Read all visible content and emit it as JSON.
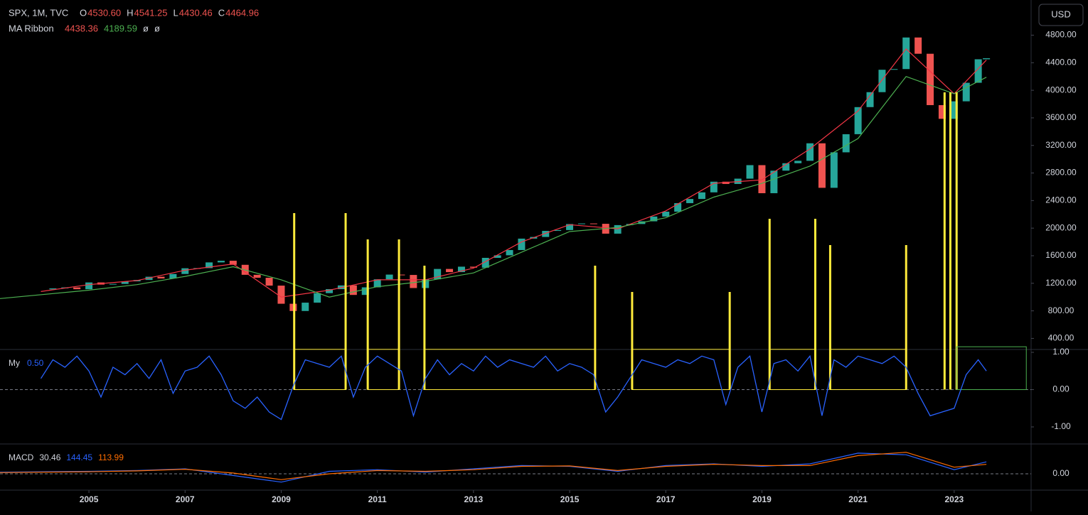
{
  "header": {
    "symbol": "SPX, 1M, TVC",
    "ohlc": [
      {
        "label": "O",
        "value": "4530.60"
      },
      {
        "label": "H",
        "value": "4541.25"
      },
      {
        "label": "L",
        "value": "4430.46"
      },
      {
        "label": "C",
        "value": "4464.96"
      }
    ],
    "ma_label": "MA Ribbon",
    "ma_values": [
      "4438.36",
      "4189.59",
      "ø",
      "ø"
    ],
    "currency": "USD"
  },
  "chart_data": [
    {
      "type": "candle",
      "x": [
        2004,
        2004.25,
        2004.5,
        2004.75,
        2005,
        2005.25,
        2005.5,
        2005.75,
        2006,
        2006.25,
        2006.5,
        2006.75,
        2007,
        2007.25,
        2007.5,
        2007.75,
        2008,
        2008.25,
        2008.5,
        2008.75,
        2009,
        2009.25,
        2009.5,
        2009.75,
        2010,
        2010.25,
        2010.5,
        2010.75,
        2011,
        2011.25,
        2011.5,
        2011.75,
        2012,
        2012.25,
        2012.5,
        2012.75,
        2013,
        2013.25,
        2013.5,
        2013.75,
        2014,
        2014.25,
        2014.5,
        2014.75,
        2015,
        2015.25,
        2015.5,
        2015.75,
        2016,
        2016.25,
        2016.5,
        2016.75,
        2017,
        2017.25,
        2017.5,
        2017.75,
        2018,
        2018.25,
        2018.5,
        2018.75,
        2019,
        2019.25,
        2019.5,
        2019.75,
        2020,
        2020.25,
        2020.5,
        2020.75,
        2021,
        2021.25,
        2021.5,
        2021.75,
        2022,
        2022.25,
        2022.5,
        2022.75,
        2023,
        2023.25,
        2023.5,
        2023.67
      ],
      "values": [
        1112,
        1126,
        1140,
        1114,
        1212,
        1181,
        1191,
        1228,
        1248,
        1295,
        1270,
        1335,
        1418,
        1420,
        1503,
        1527,
        1468,
        1323,
        1280,
        1166,
        903,
        798,
        919,
        1057,
        1115,
        1169,
        1031,
        1141,
        1258,
        1326,
        1321,
        1131,
        1258,
        1408,
        1362,
        1441,
        1426,
        1569,
        1606,
        1682,
        1848,
        1872,
        1960,
        1972,
        2059,
        2068,
        2063,
        1920,
        2044,
        2060,
        2099,
        2168,
        2239,
        2363,
        2423,
        2519,
        2674,
        2641,
        2718,
        2914,
        2507,
        2834,
        2942,
        2977,
        3231,
        2585,
        3100,
        3363,
        3756,
        3973,
        4298,
        4308,
        4766,
        4530,
        3785,
        3586,
        3840,
        4109,
        4450,
        4465
      ],
      "up_color": "#26a69a",
      "down_color": "#ef5350",
      "lines": [
        {
          "color": "#f23645",
          "x": [
            2004,
            2005,
            2006,
            2007,
            2008,
            2009,
            2010,
            2011,
            2012,
            2013,
            2014,
            2015,
            2016,
            2017,
            2018,
            2019,
            2020,
            2021,
            2022,
            2023,
            2023.67
          ],
          "values": [
            1080,
            1180,
            1240,
            1390,
            1480,
            1000,
            1100,
            1250,
            1250,
            1420,
            1800,
            2050,
            1990,
            2250,
            2650,
            2700,
            3150,
            3700,
            4600,
            3950,
            4438
          ]
        },
        {
          "color": "#4caf50",
          "x": [
            2003.15,
            2005,
            2006,
            2007,
            2008,
            2009,
            2010,
            2011,
            2012,
            2013,
            2014,
            2015,
            2016,
            2017,
            2018,
            2019,
            2020,
            2021,
            2022,
            2023,
            2023.67
          ],
          "values": [
            978,
            1100,
            1180,
            1300,
            1440,
            1250,
            1000,
            1150,
            1230,
            1350,
            1650,
            1950,
            2010,
            2150,
            2450,
            2650,
            2900,
            3300,
            4200,
            3950,
            4190
          ]
        }
      ],
      "xlim": [
        2003.15,
        2024.6
      ],
      "ylim": [
        260,
        5310
      ],
      "yticks": [
        {
          "value": 400,
          "label": "400.00"
        },
        {
          "value": 800,
          "label": "800.00"
        },
        {
          "value": 1200,
          "label": "1200.00"
        },
        {
          "value": 1600,
          "label": "1600.00"
        },
        {
          "value": 2000,
          "label": "2000.00"
        },
        {
          "value": 2400,
          "label": "2400.00"
        },
        {
          "value": 2800,
          "label": "2800.00"
        },
        {
          "value": 3200,
          "label": "3200.00"
        },
        {
          "value": 3600,
          "label": "3600.00"
        },
        {
          "value": 4000,
          "label": "4000.00"
        },
        {
          "value": 4400,
          "label": "4400.00"
        },
        {
          "value": 4800,
          "label": "4800.00"
        }
      ],
      "xticks": [
        2005,
        2007,
        2009,
        2011,
        2013,
        2015,
        2017,
        2019,
        2021,
        2023
      ]
    },
    {
      "type": "oscillator",
      "name": "My",
      "value_label": "0.50",
      "color": "#2962ff",
      "values": [
        0.3,
        0.8,
        0.6,
        0.9,
        0.5,
        -0.2,
        0.6,
        0.4,
        0.7,
        0.3,
        0.8,
        -0.1,
        0.5,
        0.6,
        0.9,
        0.4,
        -0.3,
        -0.5,
        -0.2,
        -0.6,
        -0.8,
        0.1,
        0.8,
        0.7,
        0.6,
        0.9,
        -0.2,
        0.6,
        0.9,
        0.7,
        0.5,
        -0.7,
        0.3,
        0.8,
        0.4,
        0.7,
        0.5,
        0.9,
        0.6,
        0.8,
        0.7,
        0.6,
        0.9,
        0.5,
        0.7,
        0.6,
        0.4,
        -0.6,
        -0.2,
        0.3,
        0.8,
        0.7,
        0.6,
        0.8,
        0.7,
        0.9,
        0.8,
        -0.4,
        0.6,
        0.9,
        -0.6,
        0.7,
        0.8,
        0.5,
        0.9,
        -0.7,
        0.8,
        0.6,
        0.9,
        0.8,
        0.7,
        0.9,
        0.6,
        -0.1,
        -0.7,
        -0.6,
        -0.5,
        0.4,
        0.8,
        0.5
      ],
      "ylim": [
        -1.4,
        1.0
      ],
      "yticks": [
        {
          "value": 1,
          "label": "1.00"
        },
        {
          "value": 0,
          "label": "0.00"
        },
        {
          "value": -1,
          "label": "-1.00"
        }
      ],
      "boxes": [
        [
          2009.27,
          2010.34
        ],
        [
          2010.8,
          2011.45
        ],
        [
          2011.98,
          2015.53
        ],
        [
          2016.3,
          2018.33
        ],
        [
          2019.16,
          2020.11
        ],
        [
          2020.42,
          2022.0
        ]
      ],
      "extra_lines": [
        2022.8,
        2022.92,
        2023.05
      ],
      "box_color": "#ffeb3b",
      "open_box": [
        2023.05,
        2024.5
      ],
      "open_box_color": "#4caf50"
    },
    {
      "type": "macd",
      "name": "MACD",
      "value_labels": [
        "30.46",
        "144.45",
        "113.99"
      ],
      "series": [
        {
          "color": "#2962ff",
          "x": [
            2003.15,
            2005,
            2006,
            2007,
            2008,
            2009,
            2010,
            2011,
            2012,
            2013,
            2014,
            2015,
            2016,
            2017,
            2018,
            2019,
            2020,
            2021,
            2022,
            2023,
            2023.67
          ],
          "values": [
            20,
            30,
            40,
            60,
            -20,
            -100,
            30,
            50,
            20,
            60,
            100,
            90,
            30,
            100,
            120,
            90,
            120,
            250,
            230,
            50,
            144
          ]
        },
        {
          "color": "#ff6d00",
          "x": [
            2003.15,
            2005,
            2006,
            2007,
            2008,
            2009,
            2010,
            2011,
            2012,
            2013,
            2014,
            2015,
            2016,
            2017,
            2018,
            2019,
            2020,
            2021,
            2022,
            2023,
            2023.67
          ],
          "values": [
            15,
            25,
            35,
            55,
            10,
            -70,
            0,
            40,
            30,
            50,
            90,
            95,
            40,
            90,
            115,
            100,
            100,
            220,
            260,
            80,
            114
          ]
        }
      ],
      "ylim": [
        -197,
        343
      ],
      "yticks": [
        {
          "value": 0,
          "label": "0.00"
        }
      ]
    }
  ]
}
